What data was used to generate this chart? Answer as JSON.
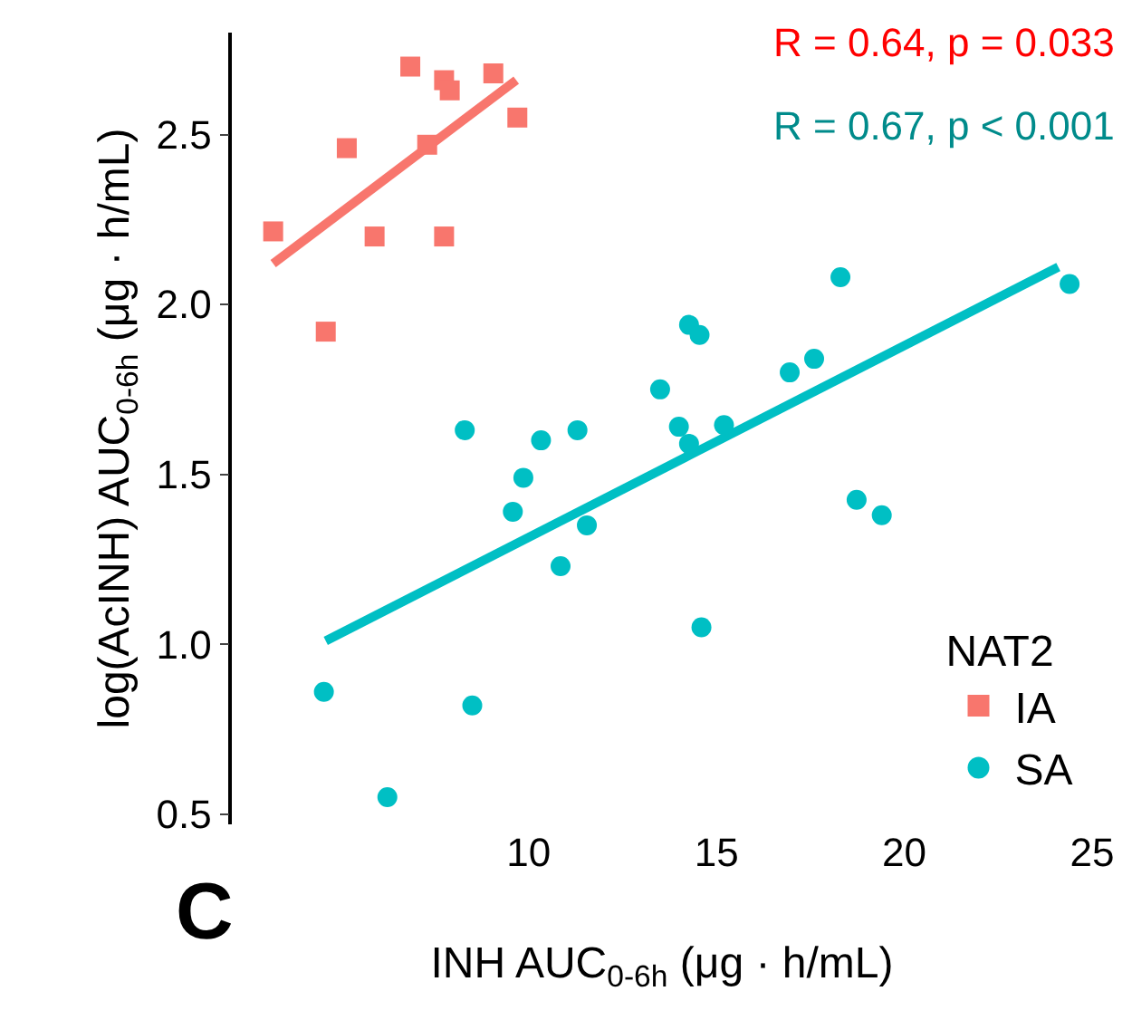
{
  "chart_data": {
    "type": "scatter",
    "xlabel": "INH AUC$_{0-6h}$ (μg · h/mL)",
    "ylabel": "log(AcINH) AUC$_{0-6h}$ (μg · h/mL)",
    "legend_title": "NAT2",
    "legend": "bottom right",
    "grid": false,
    "xlim": [
      2.1,
      25
    ],
    "xticks": [
      10,
      15,
      20,
      25
    ],
    "ylim": [
      0.47,
      2.8
    ],
    "yticks": [
      0.5,
      {
        "value": 1,
        "label": "1.0"
      },
      1.5,
      {
        "value": 2,
        "label": "2.0"
      },
      2.5
    ],
    "annotations": [
      "R = 0.64, p = 0.033",
      "R = 0.67, p < 0.001",
      "C"
    ],
    "series": [
      {
        "name": "IA",
        "color": "#f8766d",
        "marker": "square",
        "x": [
          3.2,
          4.6,
          5.16,
          5.9,
          6.85,
          7.3,
          7.75,
          7.9,
          7.75,
          9.06,
          9.7
        ],
        "values": [
          2.215,
          1.92,
          2.46,
          2.2,
          2.7,
          2.47,
          2.66,
          2.63,
          2.2,
          2.68,
          2.55
        ]
      },
      {
        "name": "SA",
        "color": "#00bfc4",
        "marker": "circle",
        "x": [
          4.55,
          6.24,
          8.3,
          8.5,
          9.58,
          9.86,
          10.33,
          10.85,
          11.3,
          11.55,
          13.5,
          14.0,
          14.27,
          14.55,
          14.27,
          14.6,
          15.2,
          16.95,
          17.6,
          18.3,
          18.73,
          19.4,
          24.4
        ],
        "values": [
          0.86,
          0.55,
          1.63,
          0.82,
          1.39,
          1.49,
          1.6,
          1.23,
          1.63,
          1.35,
          1.75,
          1.64,
          1.94,
          1.91,
          1.59,
          1.05,
          1.645,
          1.8,
          1.84,
          2.08,
          1.425,
          1.38,
          2.06
        ]
      },
      {
        "type": "line",
        "color": "#f8766d",
        "x": [
          3.2,
          9.67
        ],
        "values": [
          2.12,
          2.66
        ]
      },
      {
        "type": "line",
        "color": "#00bfc4",
        "x": [
          4.6,
          24.1
        ],
        "values": [
          1.01,
          2.11
        ]
      }
    ]
  }
}
